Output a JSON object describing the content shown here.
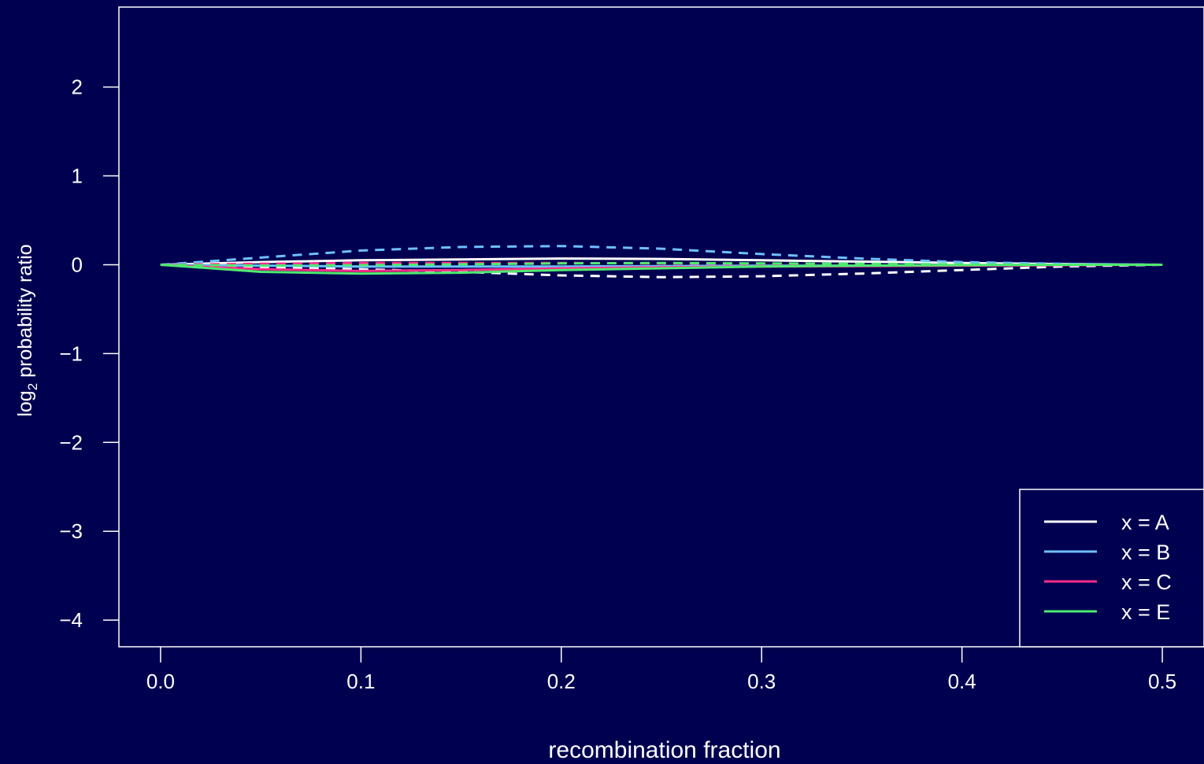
{
  "colors": {
    "background": "#000050",
    "foreground": "#ffffff"
  },
  "chart_data": {
    "type": "line",
    "title": "",
    "xlabel": "recombination fraction",
    "ylabel_main": "log",
    "ylabel_sub": "2",
    "ylabel_rest": " probability ratio",
    "xlim": [
      0.0,
      0.5
    ],
    "ylim": [
      -4.3,
      2.9
    ],
    "x_ticks": [
      0.0,
      0.1,
      0.2,
      0.3,
      0.4,
      0.5
    ],
    "x_tick_labels": [
      "0.0",
      "0.1",
      "0.2",
      "0.3",
      "0.4",
      "0.5"
    ],
    "y_ticks": [
      -4,
      -3,
      -2,
      -1,
      0,
      1,
      2
    ],
    "y_tick_labels": [
      "−4",
      "−3",
      "−2",
      "−1",
      "0",
      "1",
      "2"
    ],
    "grid": false,
    "legend_position": "bottom-right",
    "legend": [
      {
        "label": "x =  A",
        "color": "#ffffff"
      },
      {
        "label": "x =  B",
        "color": "#6ec0ff"
      },
      {
        "label": "x =  C",
        "color": "#ff2d8a"
      },
      {
        "label": "x =  E",
        "color": "#4deb6e"
      }
    ],
    "series": [
      {
        "color": "#ffffff",
        "dash": false,
        "x": [
          0,
          0.05,
          0.1,
          0.15,
          0.2,
          0.25,
          0.3,
          0.35,
          0.4,
          0.45,
          0.5
        ],
        "y": [
          0,
          0.03,
          0.05,
          0.06,
          0.07,
          0.065,
          0.05,
          0.035,
          0.02,
          0.008,
          0
        ]
      },
      {
        "color": "#ffffff",
        "dash": true,
        "x": [
          0,
          0.05,
          0.1,
          0.15,
          0.2,
          0.25,
          0.3,
          0.35,
          0.4,
          0.45,
          0.5
        ],
        "y": [
          0,
          -0.03,
          -0.05,
          -0.08,
          -0.12,
          -0.14,
          -0.13,
          -0.1,
          -0.06,
          -0.02,
          0
        ]
      },
      {
        "color": "#6ec0ff",
        "dash": true,
        "x": [
          0,
          0.05,
          0.1,
          0.15,
          0.2,
          0.25,
          0.3,
          0.35,
          0.4,
          0.45,
          0.5
        ],
        "y": [
          0,
          0.08,
          0.16,
          0.2,
          0.21,
          0.18,
          0.12,
          0.07,
          0.03,
          0.01,
          0
        ]
      },
      {
        "color": "#6ec0ff",
        "dash": false,
        "x": [
          0,
          0.05,
          0.1,
          0.15,
          0.2,
          0.25,
          0.3,
          0.35,
          0.4,
          0.45,
          0.5
        ],
        "y": [
          0,
          -0.01,
          -0.02,
          -0.02,
          -0.02,
          -0.015,
          -0.01,
          -0.01,
          -0.005,
          0,
          0
        ]
      },
      {
        "color": "#ff2d8a",
        "dash": false,
        "x": [
          0,
          0.05,
          0.1,
          0.15,
          0.2,
          0.25,
          0.3,
          0.35,
          0.4,
          0.45,
          0.5
        ],
        "y": [
          0,
          -0.05,
          -0.07,
          -0.06,
          -0.04,
          -0.03,
          -0.02,
          -0.015,
          -0.01,
          -0.005,
          0
        ]
      },
      {
        "color": "#ff2d8a",
        "dash": true,
        "x": [
          0,
          0.05,
          0.1,
          0.15,
          0.2,
          0.25,
          0.3,
          0.35,
          0.4,
          0.45,
          0.5
        ],
        "y": [
          0,
          0.01,
          0.02,
          0.02,
          0.02,
          0.015,
          0.01,
          0.005,
          0.002,
          0,
          0
        ]
      },
      {
        "color": "#4deb6e",
        "dash": false,
        "x": [
          0,
          0.05,
          0.1,
          0.15,
          0.2,
          0.25,
          0.3,
          0.35,
          0.4,
          0.45,
          0.5
        ],
        "y": [
          0,
          -0.08,
          -0.1,
          -0.09,
          -0.06,
          -0.04,
          -0.02,
          -0.01,
          -0.005,
          0,
          0
        ]
      },
      {
        "color": "#4deb6e",
        "dash": true,
        "x": [
          0,
          0.05,
          0.1,
          0.15,
          0.2,
          0.25,
          0.3,
          0.35,
          0.4,
          0.45,
          0.5
        ],
        "y": [
          0,
          -0.01,
          -0.005,
          0.005,
          0.015,
          0.02,
          0.015,
          0.01,
          0.005,
          0,
          0
        ]
      }
    ]
  }
}
